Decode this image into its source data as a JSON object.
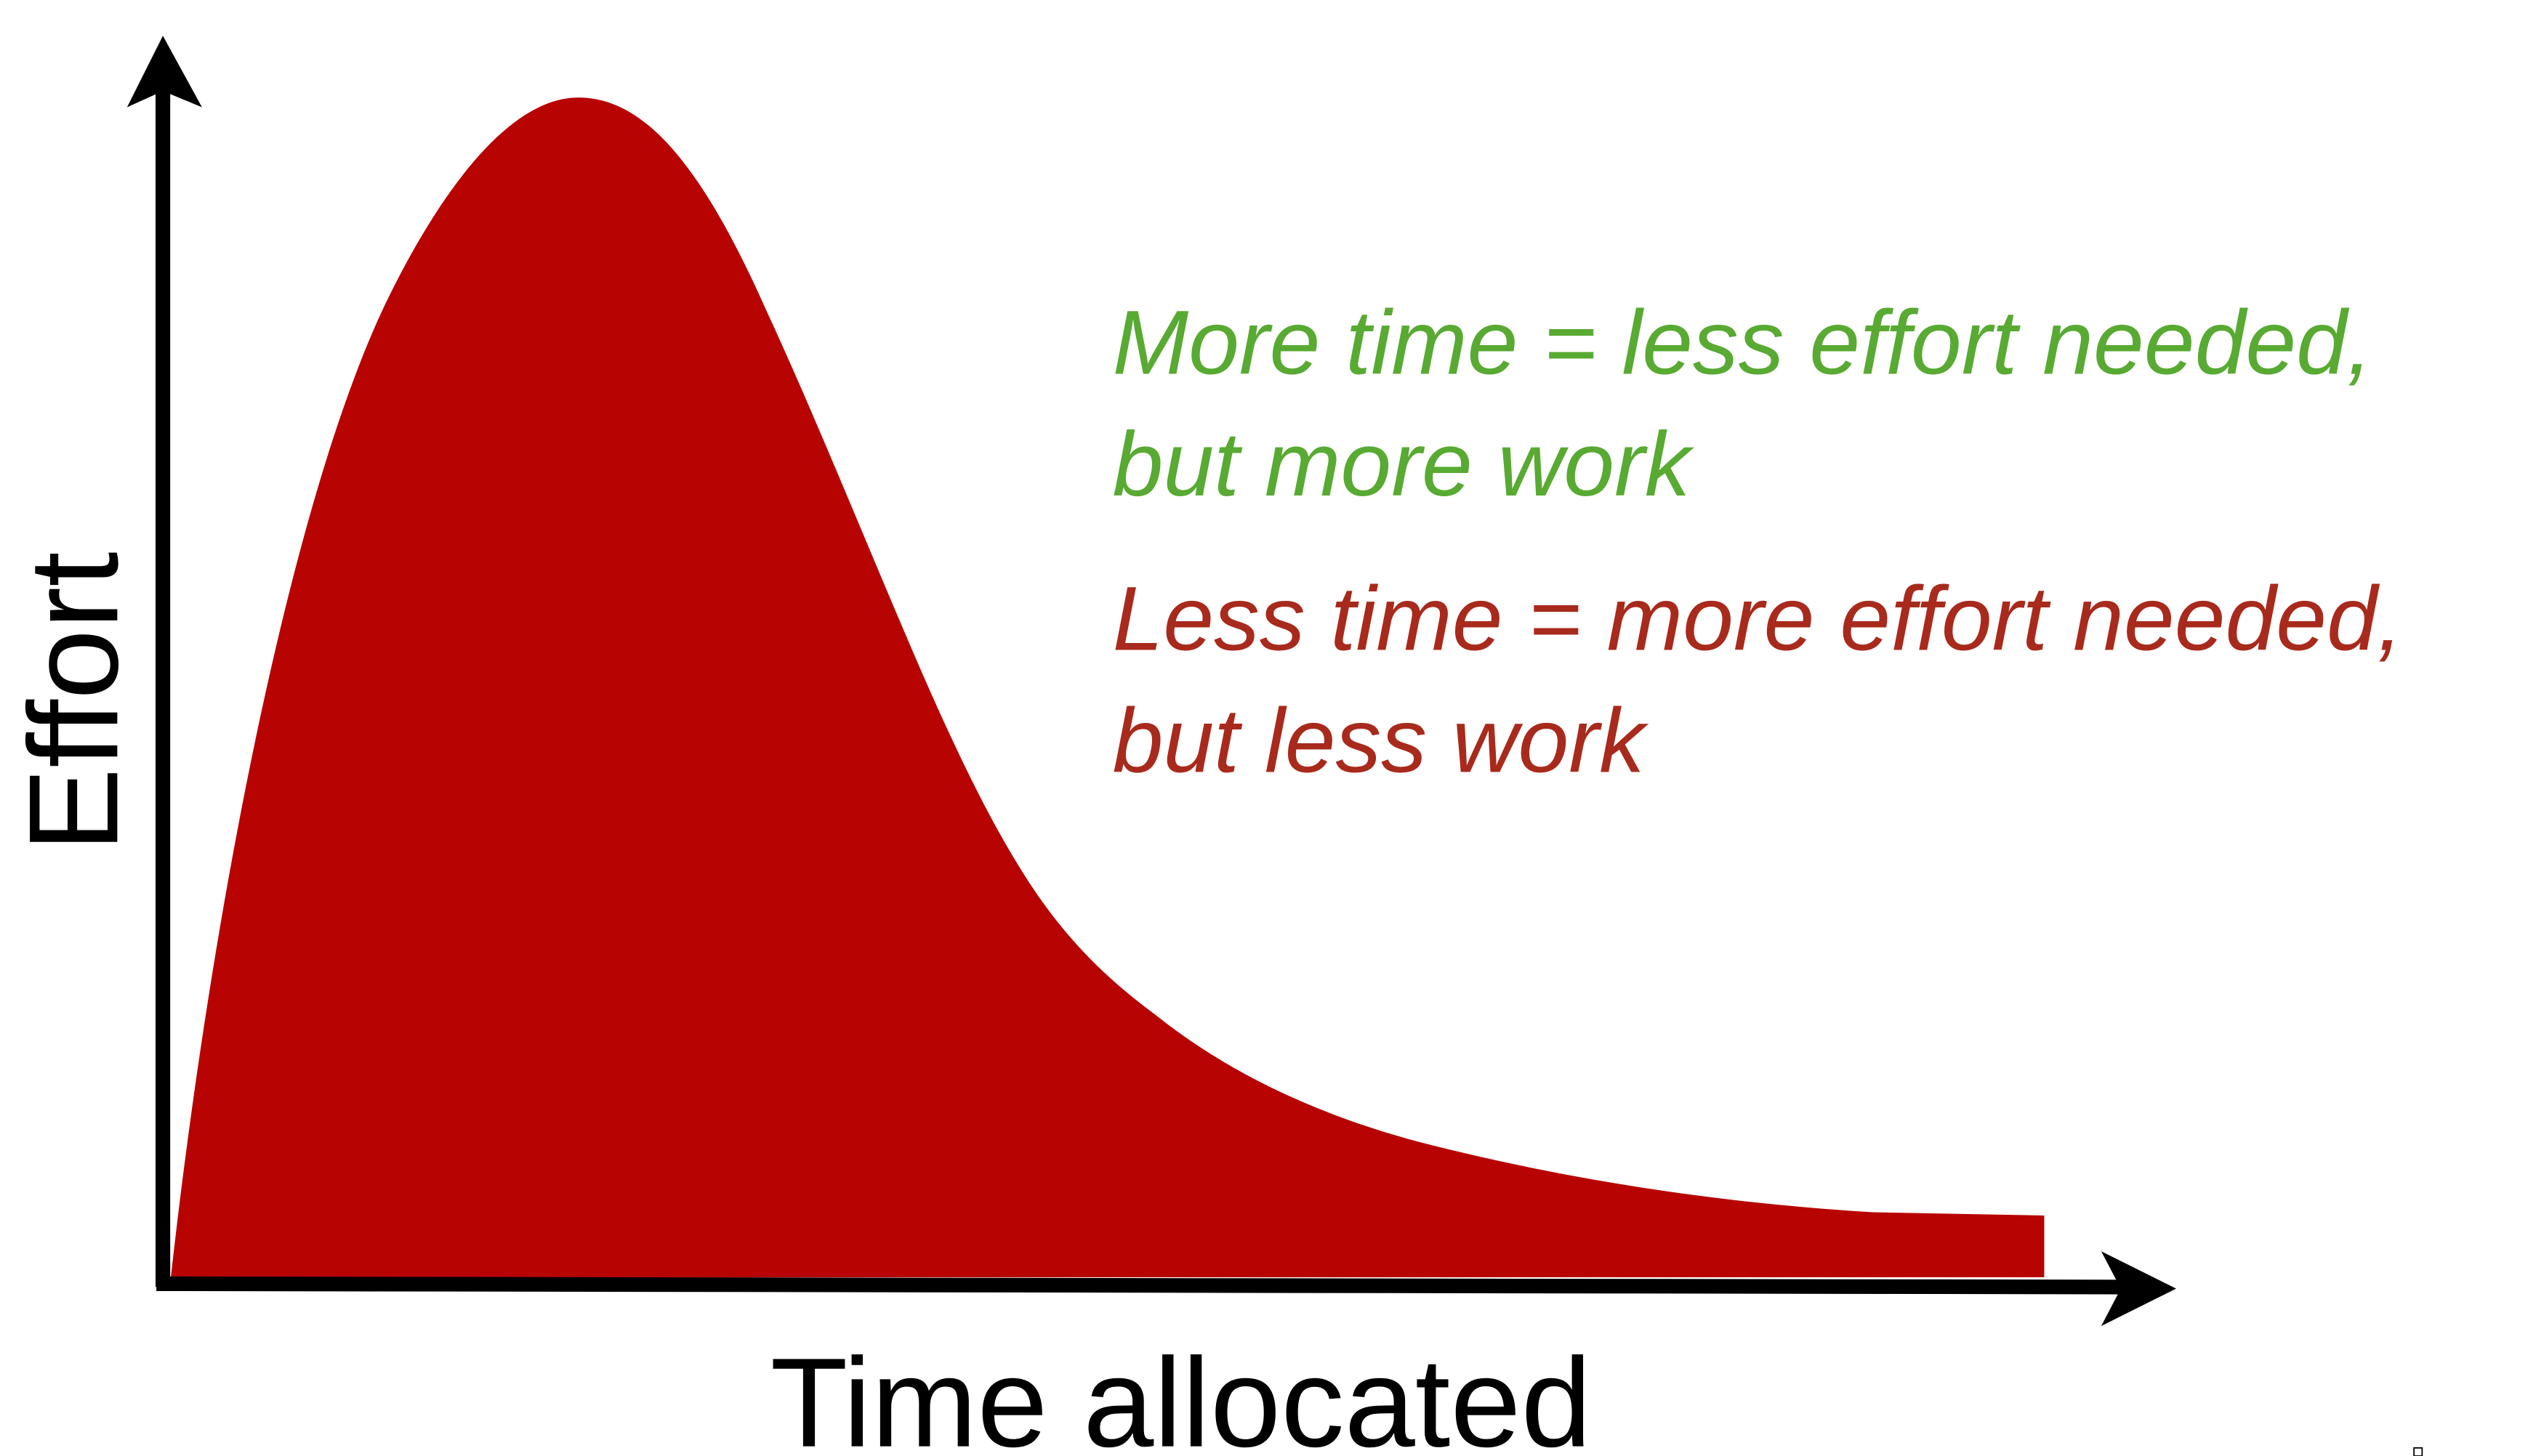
{
  "chart_data": {
    "type": "area",
    "title": "",
    "xlabel": "Time allocated",
    "ylabel": "Effort",
    "grid": false,
    "ticks": false,
    "colors": {
      "area": "#b80303",
      "axes": "#000000",
      "annotation_more_time": "#58aa32",
      "annotation_less_time": "#a82a1c"
    },
    "annotations": [
      {
        "line1": "More time = less effort needed,",
        "line2": "but more work"
      },
      {
        "line1": "Less time = more effort needed,",
        "line2": "but less work"
      }
    ]
  }
}
